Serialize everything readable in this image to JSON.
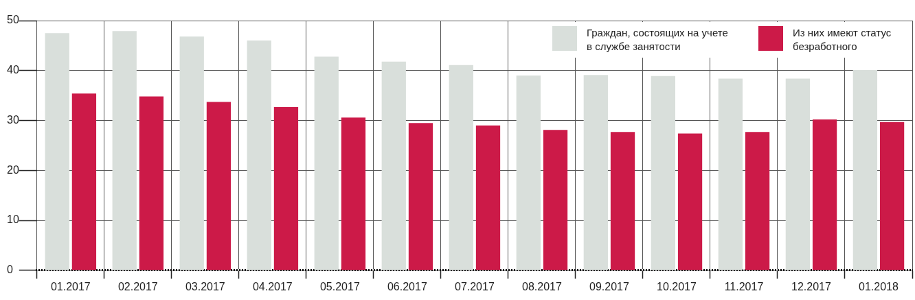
{
  "chart_data": {
    "type": "bar",
    "categories": [
      "01.2017",
      "02.2017",
      "03.2017",
      "04.2017",
      "05.2017",
      "06.2017",
      "07.2017",
      "08.2017",
      "09.2017",
      "10.2017",
      "11.2017",
      "12.2017",
      "01.2018"
    ],
    "series": [
      {
        "name": "Граждан, состоящих на учете в службе занятости",
        "color": "#d9dfdb",
        "values": [
          47.5,
          47.9,
          46.8,
          46.0,
          42.8,
          41.8,
          41.1,
          39.0,
          39.1,
          38.9,
          38.4,
          38.4,
          40.1
        ]
      },
      {
        "name": "Из них имеют статус безработного",
        "color": "#cc1a48",
        "values": [
          35.4,
          34.8,
          33.7,
          32.7,
          30.6,
          29.5,
          29.0,
          28.1,
          27.7,
          27.4,
          27.7,
          30.2,
          29.7
        ]
      }
    ],
    "ylim": [
      0,
      50
    ],
    "yticks": [
      0,
      10,
      20,
      30,
      40,
      50
    ],
    "grid": true,
    "legend": "top right"
  }
}
